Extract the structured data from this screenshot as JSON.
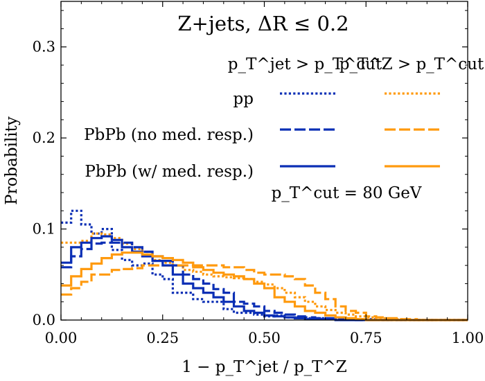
{
  "chart_data": {
    "type": "line",
    "title": "Z+jets, ΔR ≤ 0.2",
    "xlabel": "1 − p_T^jet / p_T^Z",
    "ylabel": "Probability",
    "xlim": [
      0,
      1
    ],
    "ylim": [
      0,
      0.35
    ],
    "xticks": [
      0,
      0.25,
      0.5,
      0.75,
      1.0
    ],
    "xtick_labels": [
      "0.00",
      "0.25",
      "0.50",
      "0.75",
      "1.00"
    ],
    "yticks": [
      0,
      0.1,
      0.2,
      0.3
    ],
    "ytick_labels": [
      "0.0",
      "0.1",
      "0.2",
      "0.3"
    ],
    "legend": {
      "col_headers": [
        "p_T^jet > p_T^cut",
        "p_T^Z > p_T^cut"
      ],
      "row_labels": [
        "pp",
        "PbPb (no med. resp.)",
        "PbPb (w/ med. resp.)"
      ],
      "note": "p_T^cut = 80 GeV"
    },
    "bin_edges": [
      0.0,
      0.025,
      0.05,
      0.075,
      0.1,
      0.125,
      0.15,
      0.175,
      0.2,
      0.225,
      0.25,
      0.275,
      0.3,
      0.325,
      0.35,
      0.375,
      0.4,
      0.425,
      0.45,
      0.475,
      0.5,
      0.525,
      0.55,
      0.575,
      0.6,
      0.625,
      0.65,
      0.675,
      0.7,
      0.725,
      0.75,
      0.775,
      0.8,
      0.825,
      0.85,
      0.875,
      0.9,
      0.925,
      0.95,
      0.975,
      1.0
    ],
    "series": [
      {
        "name": "pp, jet cut",
        "color": "#0b2fb5",
        "style": "dotted",
        "values": [
          0.107,
          0.12,
          0.105,
          0.095,
          0.1,
          0.077,
          0.066,
          0.06,
          0.062,
          0.05,
          0.045,
          0.03,
          0.03,
          0.023,
          0.02,
          0.02,
          0.012,
          0.008,
          0.008,
          0.006,
          0.004,
          0.005,
          0.003,
          0.003,
          0.002,
          0.002,
          0.001,
          0.001,
          0.001,
          0.001,
          0.001,
          0,
          0,
          0,
          0,
          0,
          0,
          0,
          0,
          0
        ]
      },
      {
        "name": "pp, Z cut",
        "color": "#ff9a0e",
        "style": "dotted",
        "values": [
          0.085,
          0.085,
          0.087,
          0.095,
          0.094,
          0.09,
          0.084,
          0.078,
          0.072,
          0.066,
          0.063,
          0.06,
          0.055,
          0.053,
          0.05,
          0.048,
          0.047,
          0.046,
          0.045,
          0.042,
          0.039,
          0.035,
          0.03,
          0.025,
          0.02,
          0.015,
          0.011,
          0.008,
          0.006,
          0.004,
          0.003,
          0.002,
          0.001,
          0.001,
          0,
          0,
          0,
          0,
          0,
          0
        ]
      },
      {
        "name": "PbPb (no med. resp.), jet cut",
        "color": "#0b2fb5",
        "style": "dashed",
        "values": [
          0.058,
          0.07,
          0.078,
          0.084,
          0.085,
          0.085,
          0.085,
          0.08,
          0.075,
          0.07,
          0.065,
          0.06,
          0.05,
          0.045,
          0.04,
          0.034,
          0.03,
          0.02,
          0.018,
          0.015,
          0.01,
          0.008,
          0.006,
          0.004,
          0.003,
          0.002,
          0.002,
          0.001,
          0.001,
          0,
          0,
          0,
          0,
          0,
          0,
          0,
          0,
          0,
          0,
          0
        ]
      },
      {
        "name": "PbPb (no med. resp.), Z cut",
        "color": "#ff9a0e",
        "style": "dashed",
        "values": [
          0.028,
          0.035,
          0.042,
          0.05,
          0.05,
          0.055,
          0.056,
          0.057,
          0.06,
          0.06,
          0.06,
          0.06,
          0.06,
          0.06,
          0.06,
          0.06,
          0.058,
          0.058,
          0.055,
          0.052,
          0.05,
          0.05,
          0.048,
          0.045,
          0.038,
          0.03,
          0.023,
          0.015,
          0.01,
          0.008,
          0.004,
          0.003,
          0.002,
          0.001,
          0.001,
          0,
          0,
          0,
          0,
          0
        ]
      },
      {
        "name": "PbPb (w/ med. resp.), jet cut",
        "color": "#0b2fb5",
        "style": "solid",
        "values": [
          0.063,
          0.08,
          0.085,
          0.09,
          0.092,
          0.088,
          0.08,
          0.075,
          0.07,
          0.065,
          0.06,
          0.05,
          0.04,
          0.035,
          0.03,
          0.025,
          0.02,
          0.015,
          0.01,
          0.008,
          0.005,
          0.004,
          0.003,
          0.002,
          0.001,
          0.001,
          0.001,
          0,
          0,
          0,
          0,
          0,
          0,
          0,
          0,
          0,
          0,
          0,
          0,
          0
        ]
      },
      {
        "name": "PbPb (w/ med. resp.), Z cut",
        "color": "#ff9a0e",
        "style": "solid",
        "values": [
          0.038,
          0.048,
          0.056,
          0.062,
          0.068,
          0.072,
          0.074,
          0.074,
          0.072,
          0.07,
          0.068,
          0.066,
          0.063,
          0.058,
          0.055,
          0.052,
          0.05,
          0.048,
          0.045,
          0.04,
          0.035,
          0.025,
          0.02,
          0.015,
          0.01,
          0.008,
          0.005,
          0.003,
          0.002,
          0.001,
          0,
          0,
          0,
          0,
          0,
          0,
          0,
          0,
          0,
          0
        ]
      }
    ]
  }
}
